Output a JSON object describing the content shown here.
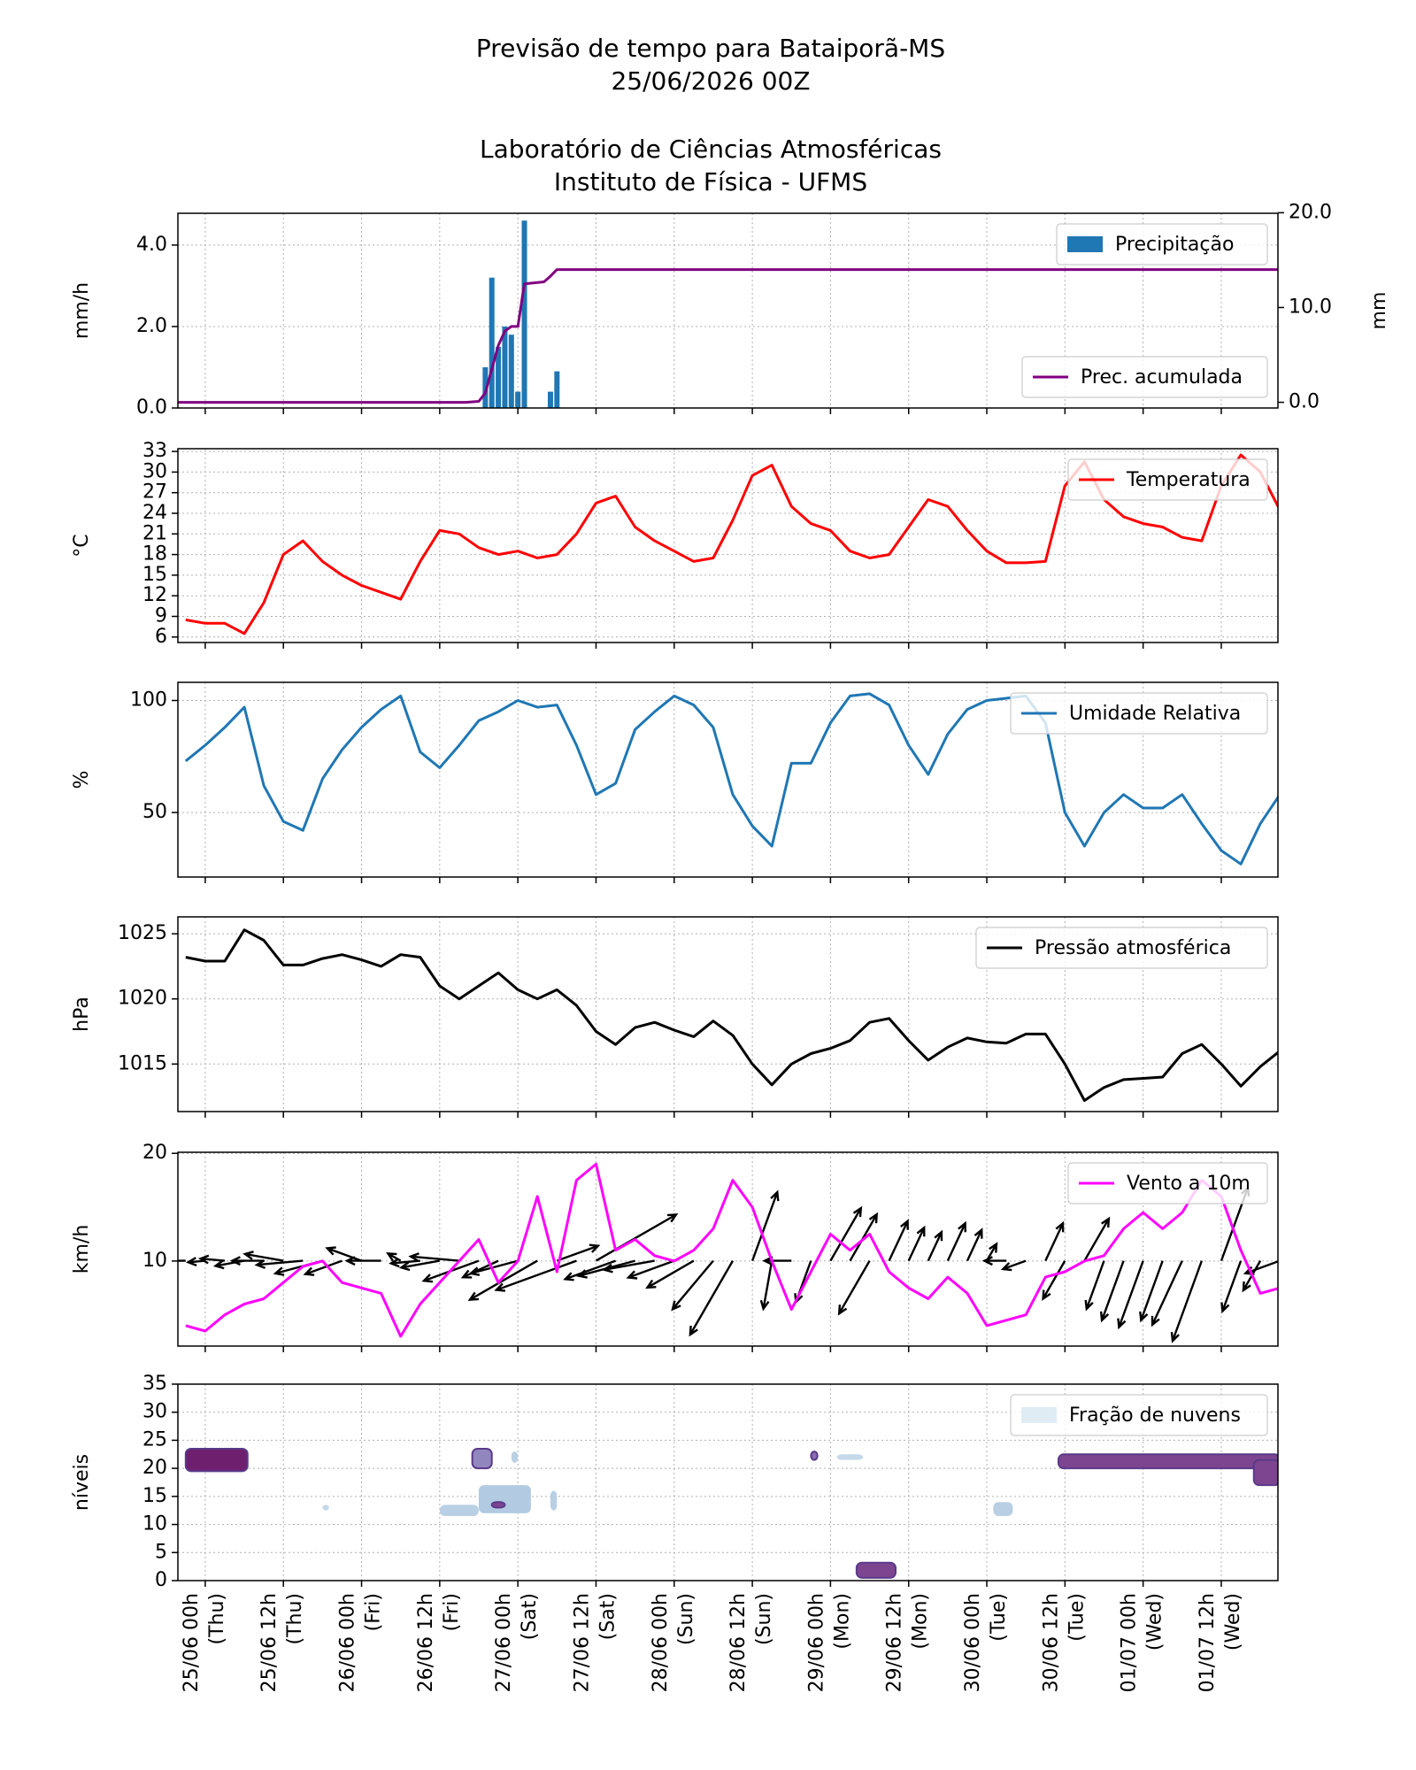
{
  "chart_data": [
    {
      "type": "bar",
      "title": [
        "Previsão de tempo para Bataiporã-MS",
        "25/06/2026 00Z",
        "Laboratório de Ciências Atmosféricas",
        "Instituto de Física - UFMS"
      ],
      "ylabel": "mm/h",
      "y2label": "mm",
      "ylim": [
        0,
        4.78
      ],
      "yticks": [
        {
          "value": 0,
          "label": "0.0"
        },
        {
          "value": 2,
          "label": "2.0"
        },
        {
          "value": 4,
          "label": "4.0"
        }
      ],
      "y2lim": [
        -0.6,
        19.94
      ],
      "y2ticks": [
        {
          "value": 0,
          "label": "0.0"
        },
        {
          "value": 10,
          "label": "10.0"
        },
        {
          "value": 20,
          "label": "20.0"
        }
      ],
      "grid": true,
      "series": [
        {
          "name": "Precipitação",
          "type": "bar",
          "color": "#1f77b4",
          "legend": "upper right",
          "x": [
            43,
            44,
            45,
            46,
            47,
            48,
            49,
            53,
            54
          ],
          "values": [
            1.0,
            3.2,
            1.5,
            2.0,
            1.8,
            0.4,
            4.6,
            0.4,
            0.9
          ]
        },
        {
          "name": "Prec. acumulada",
          "type": "line",
          "axis": "y2",
          "color": "#800080",
          "legend": "lower right",
          "x": [
            -4.2,
            40,
            42,
            43,
            44,
            45,
            46,
            47,
            48,
            49,
            52,
            53,
            54,
            164.7
          ],
          "values": [
            0,
            0,
            0.1,
            1,
            3.5,
            6,
            7.5,
            8,
            8,
            12.5,
            12.7,
            13.3,
            14,
            14
          ]
        }
      ]
    },
    {
      "type": "line",
      "ylabel": "°C",
      "ylim": [
        5.2,
        33.4
      ],
      "yticks": [
        6,
        9,
        12,
        15,
        18,
        21,
        24,
        27,
        30,
        33
      ],
      "grid": true,
      "legend": "upper right",
      "series": [
        {
          "name": "Temperatura",
          "color": "#ff0000",
          "x": [
            -3,
            0,
            3,
            6,
            9,
            12,
            15,
            18,
            21,
            24,
            27,
            30,
            33,
            36,
            39,
            42,
            45,
            48,
            51,
            54,
            57,
            60,
            63,
            66,
            69,
            72,
            75,
            78,
            81,
            84,
            87,
            90,
            93,
            96,
            99,
            102,
            105,
            108,
            111,
            114,
            117,
            120,
            123,
            126,
            129,
            132,
            135,
            138,
            141,
            144,
            147,
            150,
            153,
            156,
            159,
            162,
            165
          ],
          "values": [
            8.5,
            8,
            8,
            6.5,
            11,
            18,
            20,
            17,
            15,
            13.5,
            12.5,
            11.5,
            17,
            21.5,
            21,
            19,
            18,
            18.5,
            17.5,
            18,
            21,
            25.5,
            26.5,
            22,
            20,
            18.5,
            17,
            17.5,
            23,
            29.5,
            31,
            25,
            22.5,
            21.5,
            18.5,
            17.5,
            18,
            22,
            26,
            25,
            21.5,
            18.5,
            16.8,
            16.8,
            17,
            28,
            31.5,
            26,
            23.5,
            22.5,
            22,
            20.5,
            20,
            28,
            32.5,
            30,
            24.5
          ]
        }
      ]
    },
    {
      "type": "line",
      "ylabel": "%",
      "ylim": [
        21.2,
        108.1
      ],
      "yticks": [
        50,
        100
      ],
      "grid": true,
      "legend": "upper right",
      "series": [
        {
          "name": "Umidade Relativa",
          "color": "#1f77b4",
          "x": [
            -3,
            0,
            3,
            6,
            9,
            12,
            15,
            18,
            21,
            24,
            27,
            30,
            33,
            36,
            39,
            42,
            45,
            48,
            51,
            54,
            57,
            60,
            63,
            66,
            69,
            72,
            75,
            78,
            81,
            84,
            87,
            90,
            93,
            96,
            99,
            102,
            105,
            108,
            111,
            114,
            117,
            120,
            123,
            126,
            129,
            132,
            135,
            138,
            141,
            144,
            147,
            150,
            153,
            156,
            159,
            162,
            165
          ],
          "values": [
            73,
            80,
            88,
            97,
            62,
            46,
            42,
            65,
            78,
            88,
            96,
            102,
            77,
            70,
            80,
            91,
            95,
            100,
            97,
            98,
            80,
            58,
            63,
            87,
            95,
            102,
            98,
            88,
            58,
            44,
            35,
            72,
            72,
            90,
            102,
            103,
            98,
            80,
            67,
            85,
            96,
            100,
            101,
            102,
            90,
            50,
            35,
            50,
            58,
            52,
            52,
            58,
            45,
            33,
            27,
            45,
            58
          ]
        }
      ]
    },
    {
      "type": "line",
      "ylabel": "hPa",
      "ylim": [
        1011.35,
        1026.3
      ],
      "yticks": [
        1015,
        1020,
        1025
      ],
      "grid": true,
      "legend": "upper right",
      "series": [
        {
          "name": "Pressão atmosférica",
          "color": "#000000",
          "x": [
            -3,
            0,
            3,
            6,
            9,
            12,
            15,
            18,
            21,
            24,
            27,
            30,
            33,
            36,
            39,
            42,
            45,
            48,
            51,
            54,
            57,
            60,
            63,
            66,
            69,
            72,
            75,
            78,
            81,
            84,
            87,
            90,
            93,
            96,
            99,
            102,
            105,
            108,
            111,
            114,
            117,
            120,
            123,
            126,
            129,
            132,
            135,
            138,
            141,
            144,
            147,
            150,
            153,
            156,
            159,
            162,
            165
          ],
          "values": [
            1023.2,
            1022.9,
            1022.9,
            1025.3,
            1024.5,
            1022.6,
            1022.6,
            1023.1,
            1023.4,
            1023,
            1022.5,
            1023.4,
            1023.2,
            1021,
            1020,
            1021,
            1022,
            1020.7,
            1020,
            1020.7,
            1019.5,
            1017.5,
            1016.5,
            1017.8,
            1018.2,
            1017.6,
            1017.1,
            1018.3,
            1017.2,
            1015,
            1013.4,
            1015,
            1015.8,
            1016.2,
            1016.8,
            1018.2,
            1018.5,
            1016.8,
            1015.3,
            1016.3,
            1017,
            1016.7,
            1016.6,
            1017.3,
            1017.3,
            1015,
            1012.2,
            1013.2,
            1013.8,
            1013.9,
            1014,
            1015.8,
            1016.5,
            1015,
            1013.3,
            1014.8,
            1016
          ]
        }
      ]
    },
    {
      "type": "line",
      "ylabel": "km/h",
      "ylim": [
        2.1,
        20.1
      ],
      "yticks": [
        10,
        20
      ],
      "grid": true,
      "legend": "upper right",
      "series": [
        {
          "name": "Vento a 10m",
          "color": "#ff00ff",
          "x": [
            -3,
            0,
            3,
            6,
            9,
            12,
            15,
            18,
            21,
            24,
            27,
            30,
            33,
            36,
            39,
            42,
            45,
            48,
            51,
            54,
            57,
            60,
            63,
            66,
            69,
            72,
            75,
            78,
            81,
            84,
            87,
            90,
            93,
            96,
            99,
            102,
            105,
            108,
            111,
            114,
            117,
            120,
            123,
            126,
            129,
            132,
            135,
            138,
            141,
            144,
            147,
            150,
            153,
            156,
            159,
            162,
            165
          ],
          "values": [
            4,
            3.5,
            5,
            6,
            6.5,
            8,
            9.5,
            10,
            8,
            7.5,
            7,
            3,
            6,
            8,
            10,
            12,
            8,
            10,
            16,
            9,
            17.5,
            19,
            11,
            12,
            10.5,
            10,
            11,
            13,
            17.5,
            15,
            10,
            5.5,
            9,
            12.5,
            11,
            12.5,
            9,
            7.5,
            6.5,
            8.5,
            7,
            4,
            4.5,
            5,
            8.5,
            9,
            10,
            10.5,
            13,
            14.5,
            13,
            14.5,
            17.5,
            16,
            11,
            7,
            7.5
          ]
        }
      ],
      "wind_dir": [
        180,
        185,
        175,
        190,
        180,
        170,
        185,
        195,
        200,
        160,
        180,
        150,
        185,
        190,
        175,
        200,
        205,
        195,
        210,
        20,
        200,
        30,
        200,
        195,
        190,
        200,
        210,
        230,
        240,
        70,
        260,
        180,
        250,
        60,
        60,
        240,
        65,
        65,
        65,
        65,
        65,
        60,
        180,
        200,
        65,
        240,
        60,
        250,
        250,
        250,
        250,
        245,
        250,
        70,
        250,
        240,
        200
      ]
    },
    {
      "type": "contour",
      "ylabel": "níveis",
      "name": "Fração de nuvens",
      "ylim": [
        0,
        35
      ],
      "yticks": [
        0,
        5,
        10,
        15,
        20,
        25,
        30,
        35
      ],
      "grid": true,
      "legend": "upper right",
      "xlim": [
        -4.2,
        164.7
      ],
      "xticks": [
        {
          "value": 0,
          "label": "25/06 00h",
          "day": "(Thu)"
        },
        {
          "value": 12,
          "label": "25/06 12h",
          "day": "(Thu)"
        },
        {
          "value": 24,
          "label": "26/06 00h",
          "day": "(Fri)"
        },
        {
          "value": 36,
          "label": "26/06 12h",
          "day": "(Fri)"
        },
        {
          "value": 48,
          "label": "27/06 00h",
          "day": "(Sat)"
        },
        {
          "value": 60,
          "label": "27/06 12h",
          "day": "(Sat)"
        },
        {
          "value": 72,
          "label": "28/06 00h",
          "day": "(Sun)"
        },
        {
          "value": 84,
          "label": "28/06 12h",
          "day": "(Sun)"
        },
        {
          "value": 96,
          "label": "29/06 00h",
          "day": "(Mon)"
        },
        {
          "value": 108,
          "label": "29/06 12h",
          "day": "(Mon)"
        },
        {
          "value": 120,
          "label": "30/06 00h",
          "day": "(Tue)"
        },
        {
          "value": 132,
          "label": "30/06 12h",
          "day": "(Tue)"
        },
        {
          "value": 144,
          "label": "01/07 00h",
          "day": "(Wed)"
        },
        {
          "value": 156,
          "label": "01/07 12h",
          "day": "(Wed)"
        }
      ],
      "patches": [
        {
          "x": [
            -3,
            6.5
          ],
          "levels": [
            19.5,
            23.5
          ],
          "value": 1.0
        },
        {
          "x": [
            18,
            19
          ],
          "levels": [
            12.5,
            13.5
          ],
          "value": 0.2
        },
        {
          "x": [
            36,
            42
          ],
          "levels": [
            11.5,
            13.5
          ],
          "value": 0.3
        },
        {
          "x": [
            41,
            44
          ],
          "levels": [
            20,
            23.5
          ],
          "value": 0.7
        },
        {
          "x": [
            42,
            50
          ],
          "levels": [
            12,
            17
          ],
          "value": 0.35
        },
        {
          "x": [
            44,
            46
          ],
          "levels": [
            13,
            14
          ],
          "value": 0.9
        },
        {
          "x": [
            47,
            48
          ],
          "levels": [
            21,
            23
          ],
          "value": 0.3
        },
        {
          "x": [
            53,
            54
          ],
          "levels": [
            12.5,
            16
          ],
          "value": 0.3
        },
        {
          "x": [
            93,
            94
          ],
          "levels": [
            21.5,
            23
          ],
          "value": 0.8
        },
        {
          "x": [
            97,
            101
          ],
          "levels": [
            21.5,
            22.5
          ],
          "value": 0.2
        },
        {
          "x": [
            100,
            106
          ],
          "levels": [
            0.5,
            3.2
          ],
          "value": 0.9
        },
        {
          "x": [
            121,
            124
          ],
          "levels": [
            11.5,
            14
          ],
          "value": 0.3
        },
        {
          "x": [
            131,
            165
          ],
          "levels": [
            20,
            22.5
          ],
          "value": 0.9
        },
        {
          "x": [
            161,
            165
          ],
          "levels": [
            17,
            21.5
          ],
          "value": 0.9
        }
      ]
    }
  ]
}
